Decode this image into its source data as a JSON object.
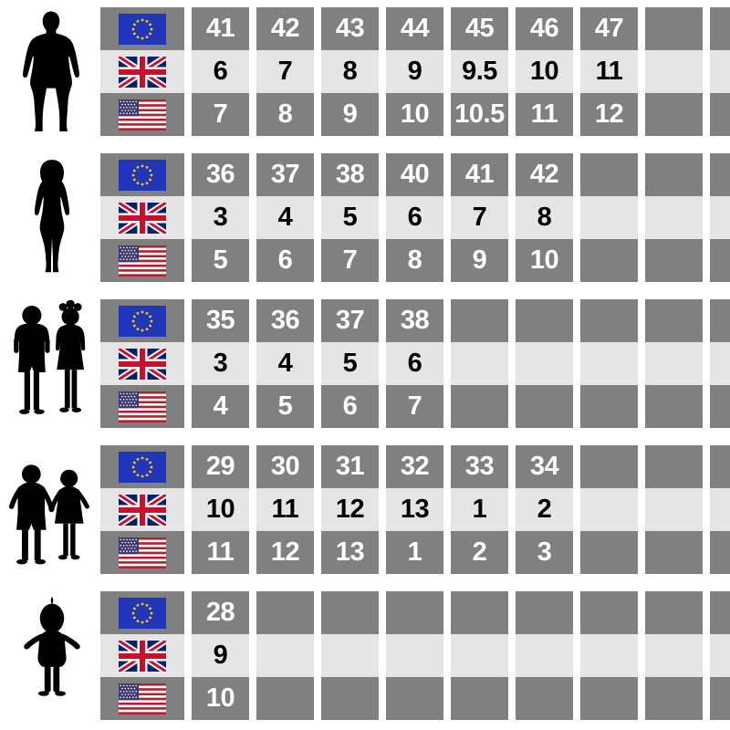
{
  "colors": {
    "dark_cell": "#808080",
    "light_cell": "#e5e5e5",
    "background": "#ffffff",
    "text_on_dark": "#ffffff",
    "text_on_light": "#000000",
    "eu_blue": "#2135b8",
    "eu_star": "#ffcc00",
    "uk_blue": "#012169",
    "uk_red": "#c8102e",
    "flag_white": "#ffffff",
    "us_red": "#b22234",
    "us_blue": "#3c3b6e"
  },
  "figure_icons": [
    "man-silhouette-icon",
    "woman-silhouette-icon",
    "children-silhouette-icon",
    "young-children-holding-hands-silhouette-icon",
    "toddler-silhouette-icon"
  ],
  "chart_data": {
    "type": "table",
    "columns": 9,
    "region_order": [
      "EU",
      "UK",
      "US"
    ],
    "groups": [
      {
        "id": "men",
        "figure_icon": "man-silhouette-icon",
        "rows": [
          {
            "region": "EU",
            "flag": "eu-flag",
            "shade": "dark",
            "sizes": [
              "41",
              "42",
              "43",
              "44",
              "45",
              "46",
              "47"
            ]
          },
          {
            "region": "UK",
            "flag": "uk-flag",
            "shade": "light",
            "sizes": [
              "6",
              "7",
              "8",
              "9",
              "9.5",
              "10",
              "11"
            ]
          },
          {
            "region": "US",
            "flag": "us-flag",
            "shade": "dark",
            "sizes": [
              "7",
              "8",
              "9",
              "10",
              "10.5",
              "11",
              "12"
            ]
          }
        ]
      },
      {
        "id": "women",
        "figure_icon": "woman-silhouette-icon",
        "rows": [
          {
            "region": "EU",
            "flag": "eu-flag",
            "shade": "dark",
            "sizes": [
              "36",
              "37",
              "38",
              "40",
              "41",
              "42"
            ]
          },
          {
            "region": "UK",
            "flag": "uk-flag",
            "shade": "light",
            "sizes": [
              "3",
              "4",
              "5",
              "6",
              "7",
              "8"
            ]
          },
          {
            "region": "US",
            "flag": "us-flag",
            "shade": "dark",
            "sizes": [
              "5",
              "6",
              "7",
              "8",
              "9",
              "10"
            ]
          }
        ]
      },
      {
        "id": "children",
        "figure_icon": "children-silhouette-icon",
        "rows": [
          {
            "region": "EU",
            "flag": "eu-flag",
            "shade": "dark",
            "sizes": [
              "35",
              "36",
              "37",
              "38"
            ]
          },
          {
            "region": "UK",
            "flag": "uk-flag",
            "shade": "light",
            "sizes": [
              "3",
              "4",
              "5",
              "6"
            ]
          },
          {
            "region": "US",
            "flag": "us-flag",
            "shade": "dark",
            "sizes": [
              "4",
              "5",
              "6",
              "7"
            ]
          }
        ]
      },
      {
        "id": "young-children",
        "figure_icon": "young-children-holding-hands-silhouette-icon",
        "rows": [
          {
            "region": "EU",
            "flag": "eu-flag",
            "shade": "dark",
            "sizes": [
              "29",
              "30",
              "31",
              "32",
              "33",
              "34"
            ]
          },
          {
            "region": "UK",
            "flag": "uk-flag",
            "shade": "light",
            "sizes": [
              "10",
              "11",
              "12",
              "13",
              "1",
              "2"
            ]
          },
          {
            "region": "US",
            "flag": "us-flag",
            "shade": "dark",
            "sizes": [
              "11",
              "12",
              "13",
              "1",
              "2",
              "3"
            ]
          }
        ]
      },
      {
        "id": "toddlers",
        "figure_icon": "toddler-silhouette-icon",
        "rows": [
          {
            "region": "EU",
            "flag": "eu-flag",
            "shade": "dark",
            "sizes": [
              "28"
            ]
          },
          {
            "region": "UK",
            "flag": "uk-flag",
            "shade": "light",
            "sizes": [
              "9"
            ]
          },
          {
            "region": "US",
            "flag": "us-flag",
            "shade": "dark",
            "sizes": [
              "10"
            ]
          }
        ]
      }
    ]
  }
}
